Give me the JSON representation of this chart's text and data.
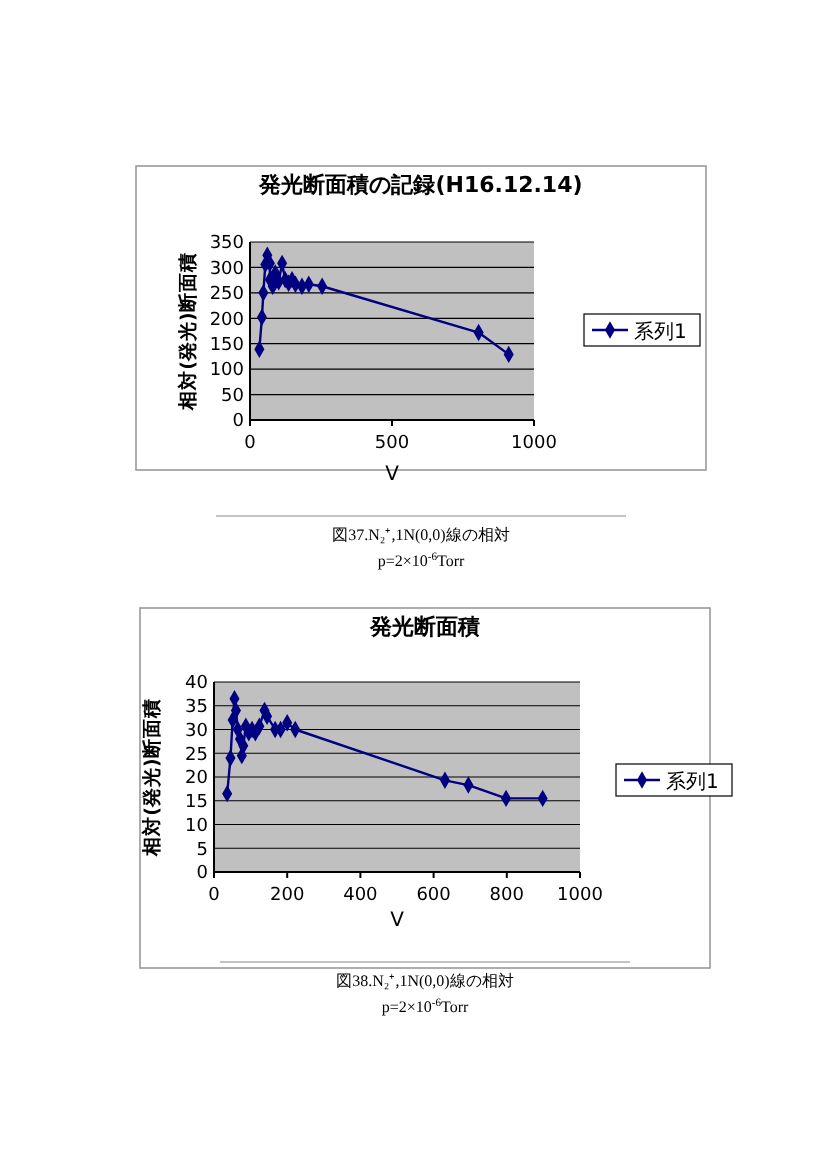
{
  "chart_data": [
    {
      "type": "line",
      "title": "発光断面積の記録(H16.12.14)",
      "xlabel": "V",
      "ylabel": "相対(発光)断面積",
      "xlim": [
        0,
        1000
      ],
      "xticks": [
        0,
        500,
        1000
      ],
      "ylim": [
        0,
        350
      ],
      "yticks": [
        0,
        50,
        100,
        150,
        200,
        250,
        300,
        350
      ],
      "grid": "y",
      "legend": "right",
      "marker": "diamond",
      "line_style": "solid",
      "series": [
        {
          "name": "系列1",
          "color": "#000080",
          "x": [
            33,
            42,
            47,
            54,
            61,
            70,
            70,
            80,
            89,
            101,
            113,
            124,
            136,
            148,
            160,
            183,
            207,
            254,
            805,
            911
          ],
          "values": [
            139,
            202,
            250,
            306,
            324,
            308,
            276,
            263,
            289,
            272,
            308,
            276,
            269,
            276,
            267,
            263,
            267,
            263,
            172,
            129
          ]
        }
      ],
      "annotations": [
        "図37.N₂⁺,1N(0,0)線の相対",
        "p=2×10$^{-6}$Torr"
      ]
    },
    {
      "type": "line",
      "title": "発光断面積",
      "xlabel": "V",
      "ylabel": "相対(発光)断面積",
      "xlim": [
        0,
        1000
      ],
      "xticks": [
        0,
        200,
        400,
        600,
        800,
        1000
      ],
      "ylim": [
        0,
        40
      ],
      "yticks": [
        0,
        5,
        10,
        15,
        20,
        25,
        30,
        35,
        40
      ],
      "grid": "y",
      "legend": "right",
      "marker": "diamond",
      "line_style": "solid",
      "series": [
        {
          "name": "系列1",
          "color": "#000080",
          "x": [
            36,
            45,
            51,
            56,
            60,
            65,
            71,
            76,
            80,
            87,
            95,
            104,
            113,
            124,
            138,
            145,
            167,
            182,
            200,
            222,
            631,
            695,
            798,
            898
          ],
          "values": [
            16.5,
            24,
            32,
            36.5,
            34,
            30,
            28,
            24.5,
            26.6,
            30.7,
            29.3,
            30,
            29.3,
            30.7,
            34,
            32.8,
            30,
            30,
            31.4,
            30,
            19.3,
            18.3,
            15.5,
            15.5
          ]
        }
      ],
      "annotations": [
        "図38.N₂⁺,1N(0,0)線の相対",
        "p=2×10$^{-6}$Torr"
      ]
    }
  ]
}
